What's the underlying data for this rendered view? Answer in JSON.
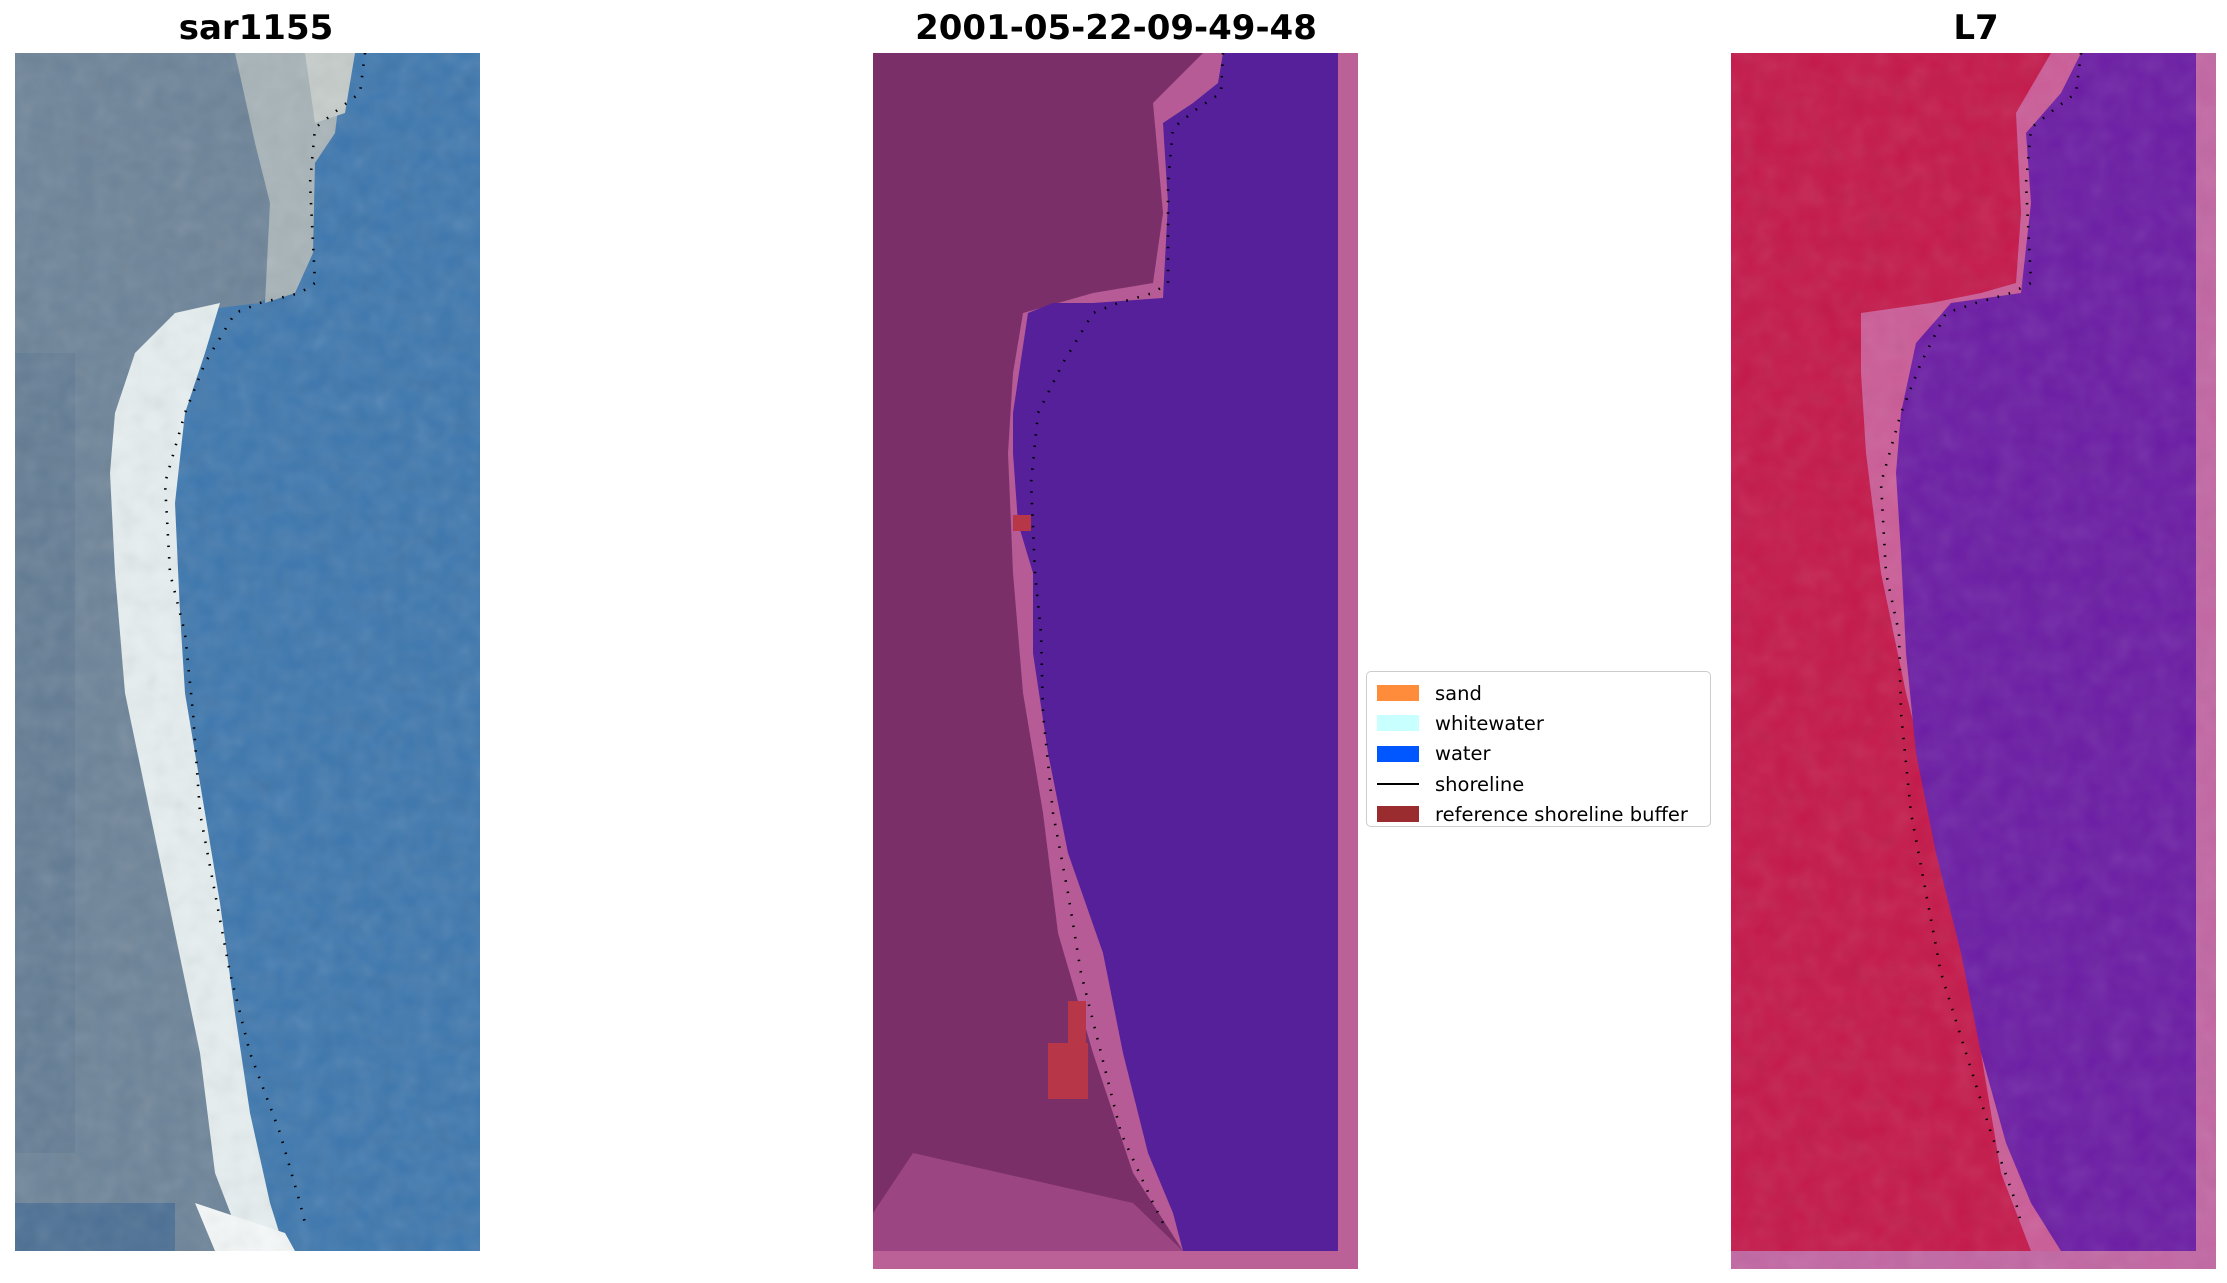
{
  "panels": [
    {
      "title": "sar1155",
      "image": "RGB satellite image of coastline"
    },
    {
      "title": "2001-05-22-09-49-48",
      "image": "classified image overlay"
    },
    {
      "title": "L7",
      "image": "MNDWI index image"
    }
  ],
  "legend": {
    "items": [
      {
        "label": "sand",
        "color": "#ff8c3b",
        "kind": "patch"
      },
      {
        "label": "whitewater",
        "color": "#c8ffff",
        "kind": "patch"
      },
      {
        "label": "water",
        "color": "#0057ff",
        "kind": "patch"
      },
      {
        "label": "shoreline",
        "color": "#000000",
        "kind": "line"
      },
      {
        "label": "reference shoreline buffer",
        "color": "#9a2b2f",
        "kind": "patch"
      }
    ]
  },
  "colors": {
    "rgb_water": "#3d77ae",
    "rgb_land": "#6c8398",
    "rgb_beach": "#e6eef0",
    "class_land": "#7a2f68",
    "class_water": "#55209a",
    "class_beach_buffer": "#b65b96",
    "class_border": "#bb6198",
    "class_red": "#b73648",
    "index_land": "#c4184a",
    "index_water": "#6b1ca4",
    "index_border": "#c266a3"
  }
}
